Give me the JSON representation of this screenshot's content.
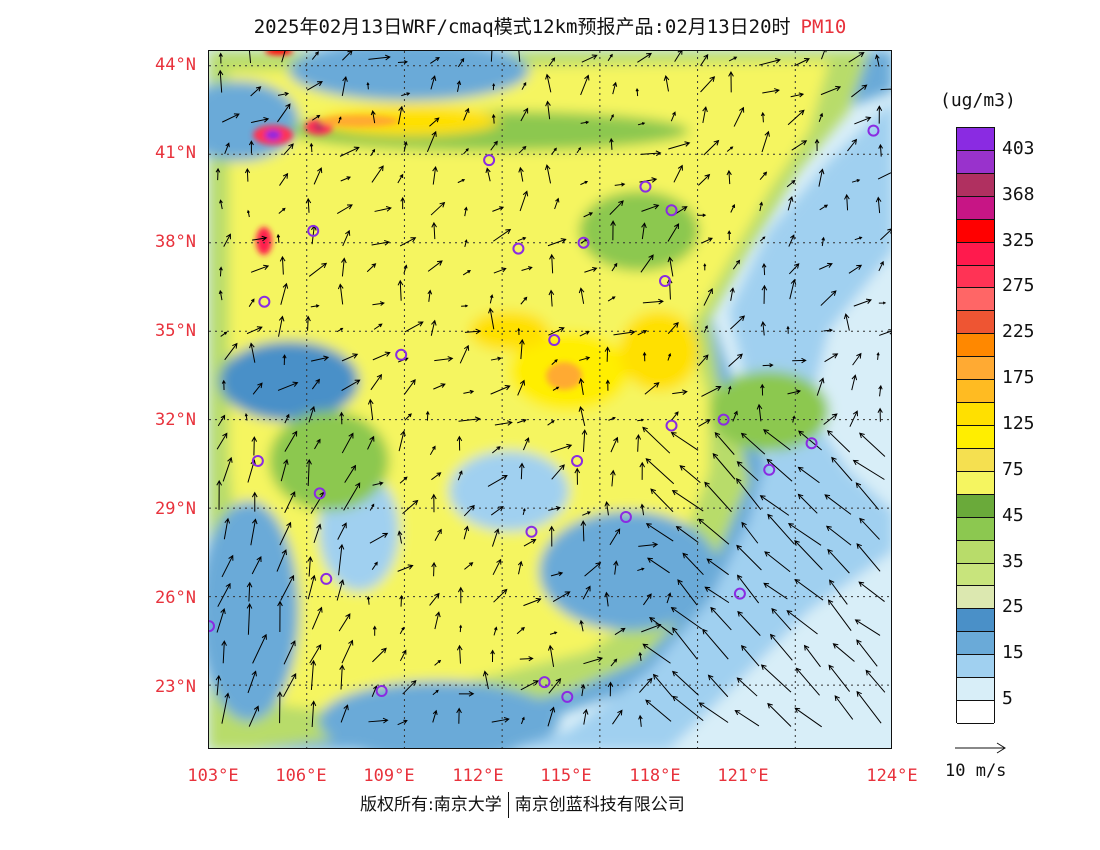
{
  "header": {
    "title": "2025年02月13日WRF/cmaq模式12km预报产品:02月13日20时",
    "product": "PM10"
  },
  "map": {
    "lat_labels": [
      "44°N",
      "41°N",
      "38°N",
      "35°N",
      "32°N",
      "29°N",
      "26°N",
      "23°N"
    ],
    "lon_labels": [
      "103°E",
      "106°E",
      "109°E",
      "112°E",
      "115°E",
      "118°E",
      "121°E",
      "124°E"
    ],
    "colors": {
      "frame": "#111111",
      "station_marker": "#8a2be2",
      "wind_arrow": "#000000"
    },
    "stations": [
      {
        "name": "city",
        "lon": 103.0,
        "lat": 25.0
      },
      {
        "name": "city",
        "lon": 104.7,
        "lat": 36.0
      },
      {
        "name": "city",
        "lon": 106.2,
        "lat": 38.4
      },
      {
        "name": "city",
        "lon": 106.4,
        "lat": 29.5
      },
      {
        "name": "city",
        "lon": 106.6,
        "lat": 26.6
      },
      {
        "name": "city",
        "lon": 104.5,
        "lat": 30.6
      },
      {
        "name": "city",
        "lon": 108.3,
        "lat": 22.8
      },
      {
        "name": "city",
        "lon": 108.9,
        "lat": 34.2
      },
      {
        "name": "city",
        "lon": 111.6,
        "lat": 40.8
      },
      {
        "name": "city",
        "lon": 112.5,
        "lat": 37.8
      },
      {
        "name": "city",
        "lon": 112.9,
        "lat": 28.2
      },
      {
        "name": "city",
        "lon": 113.3,
        "lat": 23.1
      },
      {
        "name": "city",
        "lon": 113.6,
        "lat": 34.7
      },
      {
        "name": "city",
        "lon": 114.3,
        "lat": 30.6
      },
      {
        "name": "city",
        "lon": 114.5,
        "lat": 38.0
      },
      {
        "name": "city",
        "lon": 115.8,
        "lat": 28.7
      },
      {
        "name": "city",
        "lon": 116.4,
        "lat": 39.9
      },
      {
        "name": "city",
        "lon": 117.0,
        "lat": 36.7
      },
      {
        "name": "city",
        "lon": 117.2,
        "lat": 31.8
      },
      {
        "name": "city",
        "lon": 117.2,
        "lat": 39.1
      },
      {
        "name": "city",
        "lon": 118.8,
        "lat": 32.0
      },
      {
        "name": "city",
        "lon": 119.3,
        "lat": 26.1
      },
      {
        "name": "city",
        "lon": 120.2,
        "lat": 30.3
      },
      {
        "name": "city",
        "lon": 121.5,
        "lat": 31.2
      },
      {
        "name": "city",
        "lon": 123.4,
        "lat": 41.8
      },
      {
        "name": "city",
        "lon": 114.0,
        "lat": 22.6
      }
    ]
  },
  "legend": {
    "unit": "(ug/m3)",
    "colors": [
      "#8a2be2",
      "#9932cc",
      "#b03060",
      "#c71585",
      "#ff0000",
      "#ff1a4d",
      "#ff3355",
      "#ff6666",
      "#ee5533",
      "#ff8800",
      "#ffaa33",
      "#ffbb22",
      "#ffe000",
      "#ffee00",
      "#f5e050",
      "#f5f560",
      "#6aaa3a",
      "#8cc850",
      "#b8dc6a",
      "#c8e47c",
      "#dce8b0",
      "#4a90c8",
      "#6aaad8",
      "#a0d0f0",
      "#d8eef8",
      "#ffffff"
    ],
    "ticks": [
      "403",
      "368",
      "325",
      "275",
      "225",
      "175",
      "125",
      "75",
      "45",
      "35",
      "25",
      "15",
      "5"
    ]
  },
  "wind_reference": {
    "label": "10 m/s"
  },
  "footer": {
    "left": "版权所有:南京大学",
    "right": "南京创蓝科技有限公司"
  }
}
